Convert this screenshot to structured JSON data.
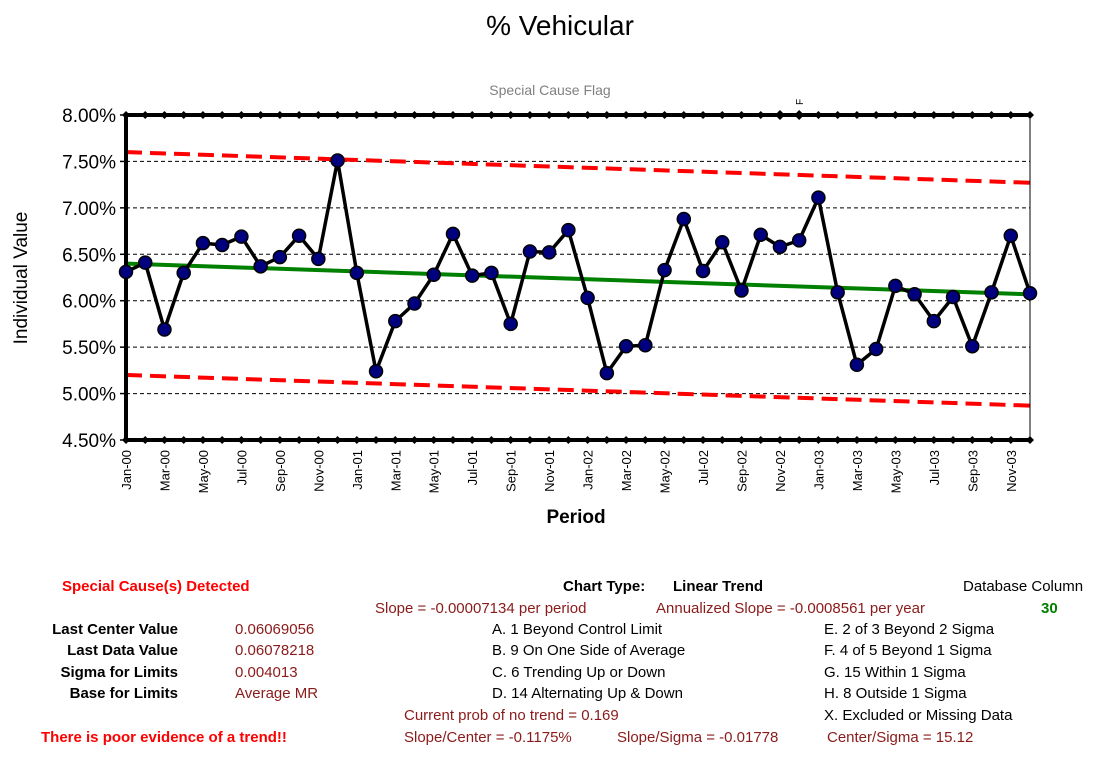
{
  "chart_data": {
    "type": "line",
    "title": "% Vehicular",
    "subtitle": "Special Cause Flag",
    "xlabel": "Period",
    "ylabel": "Individual Value",
    "ylim": [
      0.045,
      0.08
    ],
    "y_ticks": [
      "4.50%",
      "5.00%",
      "5.50%",
      "6.00%",
      "6.50%",
      "7.00%",
      "7.50%",
      "8.00%"
    ],
    "y_tick_values": [
      0.045,
      0.05,
      0.055,
      0.06,
      0.065,
      0.07,
      0.075,
      0.08
    ],
    "grid": true,
    "x_tick_labels": [
      "Jan-00",
      "Mar-00",
      "May-00",
      "Jul-00",
      "Sep-00",
      "Nov-00",
      "Jan-01",
      "Mar-01",
      "May-01",
      "Jul-01",
      "Sep-01",
      "Nov-01",
      "Jan-02",
      "Mar-02",
      "May-02",
      "Jul-02",
      "Sep-02",
      "Nov-02",
      "Jan-03",
      "Mar-03",
      "May-03",
      "Jul-03",
      "Sep-03",
      "Nov-03"
    ],
    "categories": [
      "Jan-00",
      "Feb-00",
      "Mar-00",
      "Apr-00",
      "May-00",
      "Jun-00",
      "Jul-00",
      "Aug-00",
      "Sep-00",
      "Oct-00",
      "Nov-00",
      "Dec-00",
      "Jan-01",
      "Feb-01",
      "Mar-01",
      "Apr-01",
      "May-01",
      "Jun-01",
      "Jul-01",
      "Aug-01",
      "Sep-01",
      "Oct-01",
      "Nov-01",
      "Dec-01",
      "Jan-02",
      "Feb-02",
      "Mar-02",
      "Apr-02",
      "May-02",
      "Jun-02",
      "Jul-02",
      "Aug-02",
      "Sep-02",
      "Oct-02",
      "Nov-02",
      "Dec-02",
      "Jan-03",
      "Feb-03",
      "Mar-03",
      "Apr-03",
      "May-03",
      "Jun-03",
      "Jul-03",
      "Aug-03",
      "Sep-03",
      "Oct-03",
      "Nov-03",
      "Dec-03"
    ],
    "series": [
      {
        "role": "data",
        "color": "#000000",
        "marker_color": "#00007f",
        "values": [
          0.0631,
          0.0641,
          0.0569,
          0.063,
          0.0662,
          0.066,
          0.0669,
          0.0637,
          0.0647,
          0.067,
          0.0645,
          0.0751,
          0.063,
          0.0524,
          0.0578,
          0.0597,
          0.0628,
          0.0672,
          0.0627,
          0.063,
          0.0575,
          0.0653,
          0.0652,
          0.0676,
          0.0603,
          0.0522,
          0.0551,
          0.0552,
          0.0633,
          0.0688,
          0.0632,
          0.0663,
          0.0611,
          0.0671,
          0.0658,
          0.0665,
          0.0711,
          0.0609,
          0.0531,
          0.0548,
          0.0616,
          0.0607,
          0.0578,
          0.0604,
          0.0551,
          0.0609,
          0.067,
          0.0608
        ]
      },
      {
        "role": "center-line",
        "color": "#008000",
        "start": 0.064,
        "end": 0.06069056
      },
      {
        "role": "upper-control-limit",
        "color": "#ff0000",
        "start": 0.076,
        "end": 0.0727
      },
      {
        "role": "lower-control-limit",
        "color": "#ff0000",
        "start": 0.052,
        "end": 0.0487
      }
    ],
    "special_cause_flags": [
      {
        "category": "Nov-02",
        "label": ""
      },
      {
        "category": "Dec-02",
        "label": "F"
      }
    ]
  },
  "summary": {
    "special_cause": "Special Cause(s) Detected",
    "chart_type_label": "Chart Type:",
    "chart_type_value": "Linear Trend",
    "db_column_label": "Database Column",
    "db_column_value": "30",
    "slope": "Slope = -0.00007134 per period",
    "annualized_slope": "Annualized Slope = -0.0008561 per year",
    "rows": [
      {
        "label": "Last Center Value",
        "value": "0.06069056"
      },
      {
        "label": "Last Data Value",
        "value": "0.06078218"
      },
      {
        "label": "Sigma for Limits",
        "value": "0.004013"
      },
      {
        "label": "Base for Limits",
        "value": "Average MR"
      }
    ],
    "rules_left": [
      "A. 1 Beyond Control Limit",
      "B. 9 On One Side of Average",
      "C. 6 Trending Up or Down",
      "D. 14 Alternating  Up & Down"
    ],
    "rules_right": [
      "E.  2 of 3 Beyond 2 Sigma",
      "F.  4 of 5 Beyond 1 Sigma",
      "G.  15 Within 1 Sigma",
      "H.  8 Outside 1 Sigma",
      "X.  Excluded or Missing Data"
    ],
    "prob_no_trend": "Current prob of no trend = 0.169",
    "slope_center": "Slope/Center = -0.1175%",
    "slope_sigma": "Slope/Sigma = -0.01778",
    "center_sigma": "Center/Sigma = 15.12",
    "trend_evidence": "There is poor evidence of a trend!!"
  }
}
